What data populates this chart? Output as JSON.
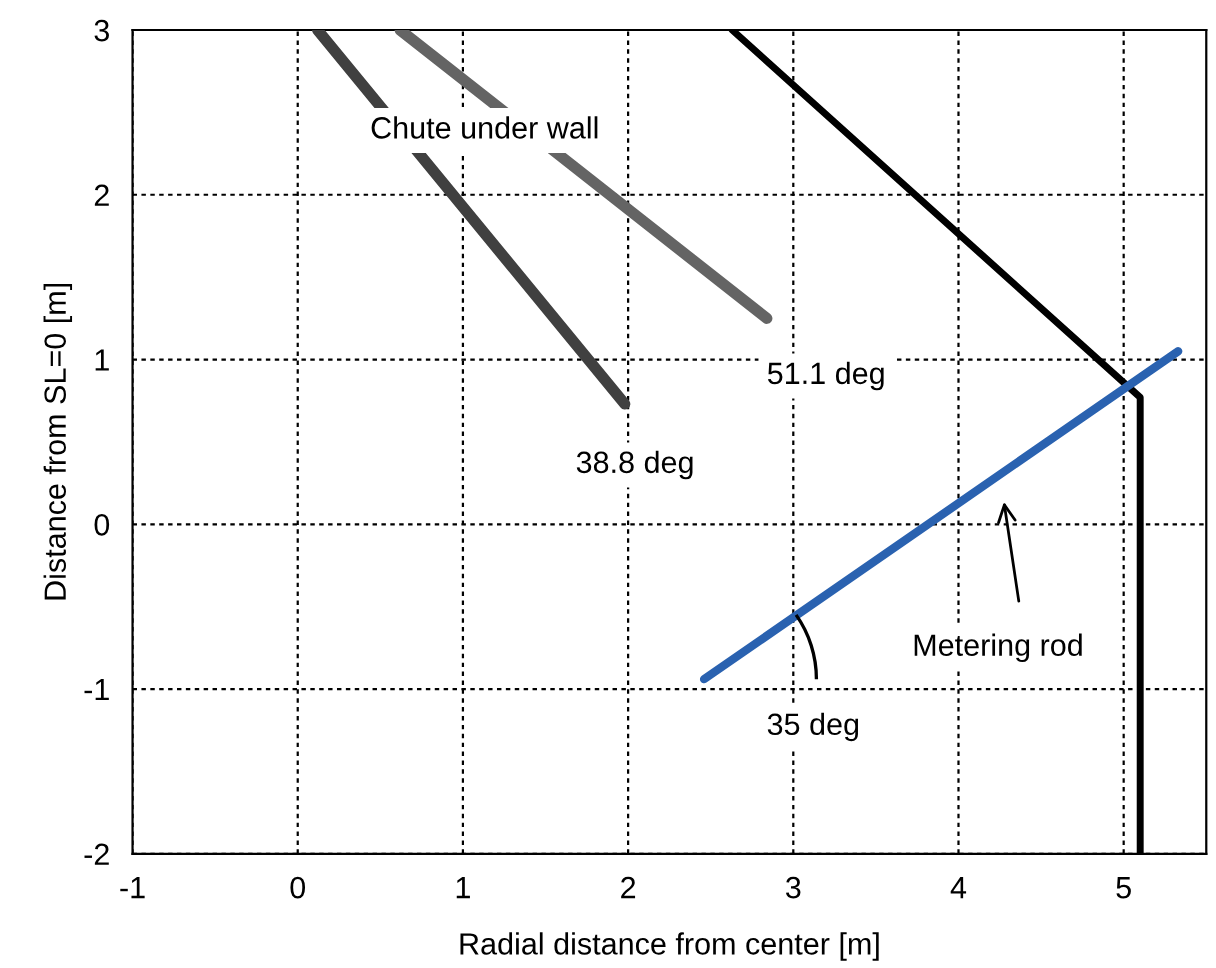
{
  "chart_data": {
    "type": "line",
    "xlabel": "Radial distance from center [m]",
    "ylabel": "Distance from SL=0 [m]",
    "xlim": [
      -1,
      5.5
    ],
    "xticks": [
      -1,
      0,
      1,
      2,
      3,
      4,
      5
    ],
    "ylim": [
      -2,
      3
    ],
    "yticks": [
      -2,
      -1,
      0,
      1,
      2,
      3
    ],
    "grid": true,
    "marker": "none",
    "series": [
      {
        "color": "#404040",
        "x": [
          0.12,
          1.98
        ],
        "values": [
          3,
          0.73
        ]
      },
      {
        "color": "#646464",
        "x": [
          0.62,
          2.84
        ],
        "values": [
          3,
          1.25
        ]
      },
      {
        "color": "#000000",
        "x": [
          2.63,
          5.1,
          5.1
        ],
        "values": [
          3,
          0.77,
          -2
        ]
      },
      {
        "color": "#2a62b0",
        "x": [
          2.46,
          5.33
        ],
        "values": [
          -0.94,
          1.05
        ]
      }
    ],
    "annotations": [
      "Chute under wall",
      "51.1 deg",
      "38.8 deg",
      "35 deg",
      "Metering rod"
    ]
  }
}
